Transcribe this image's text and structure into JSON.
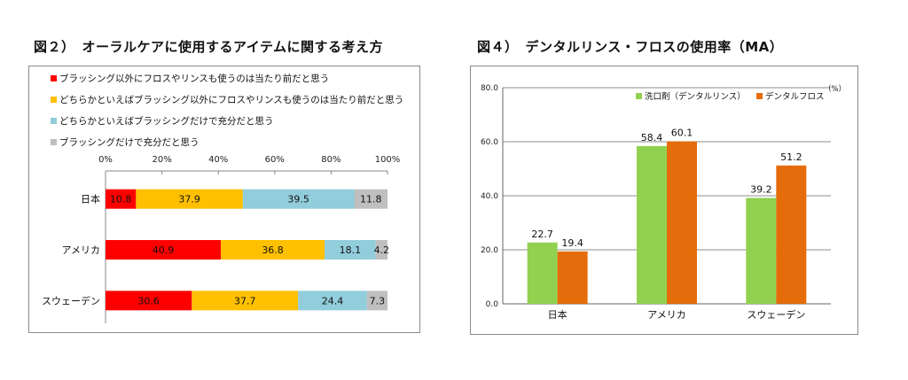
{
  "left_title": "図２）　オーラルケアに使用するアイテムに関する考え方",
  "right_title": "図４）　デンタルリンス・フロスの使用率（MA）",
  "chart_data": [
    {
      "type": "bar",
      "orientation": "horizontal",
      "stacked": true,
      "percent": true,
      "categories": [
        "日本",
        "アメリカ",
        "スウェーデン"
      ],
      "x_ticks": [
        "0%",
        "20%",
        "40%",
        "60%",
        "80%",
        "100%"
      ],
      "xlim": [
        0,
        100
      ],
      "legend_position": "top",
      "series": [
        {
          "name": "ブラッシング以外にフロスやリンスも使うのは当たり前だと思う",
          "color": "#ff0000",
          "values": [
            10.8,
            40.9,
            30.6
          ]
        },
        {
          "name": "どちらかといえばブラッシング以外にフロスやリンスも使うのは当たり前だと思う",
          "color": "#ffc000",
          "values": [
            37.9,
            36.8,
            37.7
          ]
        },
        {
          "name": "どちらかといえばブラッシングだけで充分だと思う",
          "color": "#92cddc",
          "values": [
            39.5,
            18.1,
            24.4
          ]
        },
        {
          "name": "ブラッシングだけで充分だと思う",
          "color": "#bfbfbf",
          "values": [
            11.8,
            4.2,
            7.3
          ]
        }
      ],
      "grid": false
    },
    {
      "type": "bar",
      "orientation": "vertical",
      "categories": [
        "日本",
        "アメリカ",
        "スウェーデン"
      ],
      "y_ticks": [
        "0.0",
        "20.0",
        "40.0",
        "60.0",
        "80.0"
      ],
      "ylim": [
        0,
        80
      ],
      "unit": "（%）",
      "legend_position": "top-right",
      "grid": true,
      "series": [
        {
          "name": "洗口剤（デンタルリンス）",
          "color": "#92d050",
          "values": [
            22.7,
            58.4,
            39.2
          ]
        },
        {
          "name": "デンタルフロス",
          "color": "#e46c0a",
          "values": [
            19.4,
            60.1,
            51.2
          ]
        }
      ]
    }
  ]
}
